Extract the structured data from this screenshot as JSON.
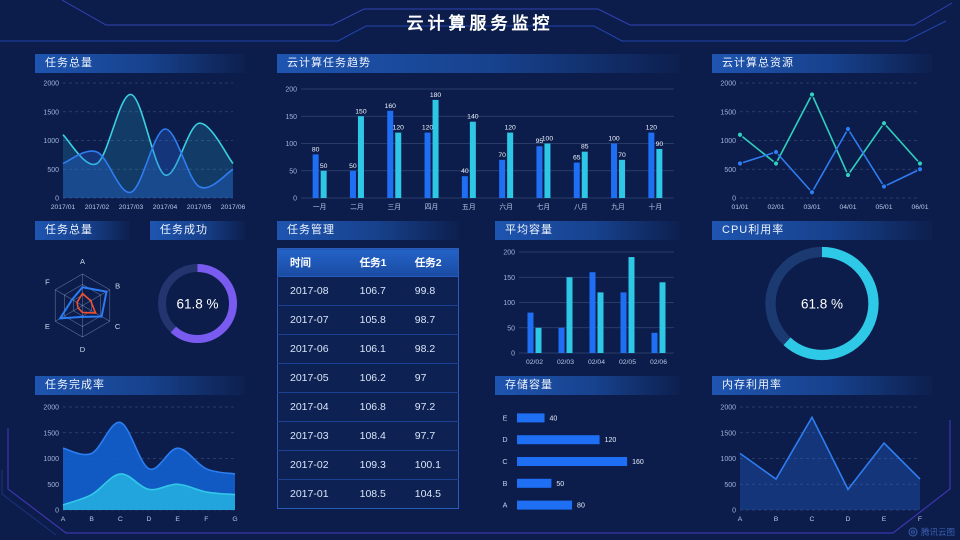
{
  "header": {
    "title": "云计算服务监控"
  },
  "watermark": {
    "label": "腾讯云图"
  },
  "panels": {
    "tasks_total": {
      "title": "任务总量"
    },
    "cloud_task_trend": {
      "title": "云计算任务趋势"
    },
    "cloud_total_resource": {
      "title": "云计算总资源"
    },
    "tasks_total_radar": {
      "title": "任务总量"
    },
    "task_success": {
      "title": "任务成功"
    },
    "task_management": {
      "title": "任务管理"
    },
    "avg_capacity": {
      "title": "平均容量"
    },
    "cpu_usage": {
      "title": "CPU利用率"
    },
    "task_completion": {
      "title": "任务完成率"
    },
    "storage_capacity": {
      "title": "存储容量"
    },
    "memory_usage": {
      "title": "内存利用率"
    }
  },
  "table": {
    "headers": [
      "时间",
      "任务1",
      "任务2"
    ],
    "rows": [
      [
        "2017-08",
        "106.7",
        "99.8"
      ],
      [
        "2017-07",
        "105.8",
        "98.7"
      ],
      [
        "2017-06",
        "106.1",
        "98.2"
      ],
      [
        "2017-05",
        "106.2",
        "97"
      ],
      [
        "2017-04",
        "106.8",
        "97.2"
      ],
      [
        "2017-03",
        "108.4",
        "97.7"
      ],
      [
        "2017-02",
        "109.3",
        "100.1"
      ],
      [
        "2017-01",
        "108.5",
        "104.5"
      ]
    ]
  },
  "chart_data": [
    {
      "id": "tasks_total",
      "type": "area",
      "title": "任务总量",
      "x": [
        "2017/01",
        "2017/02",
        "2017/03",
        "2017/04",
        "2017/05",
        "2017/06"
      ],
      "series": [
        {
          "name": "cyan",
          "color": "#3ad0e0",
          "fill": "rgba(49,180,215,0.20)",
          "values": [
            1100,
            600,
            1800,
            400,
            1300,
            600
          ]
        },
        {
          "name": "blue",
          "color": "#2e7df2",
          "fill": "rgba(40,110,230,0.30)",
          "values": [
            600,
            800,
            100,
            1200,
            200,
            500
          ]
        }
      ],
      "ylim": [
        0,
        2000
      ],
      "yticks": [
        0,
        500,
        1000,
        1500,
        2000
      ],
      "smooth": true,
      "markers": false,
      "grid_dashed": true
    },
    {
      "id": "cloud_task_trend",
      "type": "bar",
      "title": "云计算任务趋势",
      "categories": [
        "一月",
        "二月",
        "三月",
        "四月",
        "五月",
        "六月",
        "七月",
        "八月",
        "九月",
        "十月"
      ],
      "series": [
        {
          "name": "blue",
          "color": "#1f6ff5",
          "values": [
            80,
            50,
            160,
            120,
            40,
            70,
            95,
            65,
            100,
            120
          ]
        },
        {
          "name": "cyan",
          "color": "#2ec8e6",
          "values": [
            50,
            150,
            120,
            180,
            140,
            120,
            100,
            85,
            70,
            90
          ]
        }
      ],
      "ylim": [
        0,
        200
      ],
      "yticks": [
        0,
        50,
        100,
        150,
        200
      ],
      "value_labels": true
    },
    {
      "id": "cloud_total_resource",
      "type": "line",
      "title": "云计算总资源",
      "x": [
        "01/01",
        "02/01",
        "03/01",
        "04/01",
        "05/01",
        "06/01"
      ],
      "series": [
        {
          "name": "teal",
          "color": "#2fd0bc",
          "values": [
            1100,
            600,
            1800,
            400,
            1300,
            600
          ]
        },
        {
          "name": "blue",
          "color": "#2e7df2",
          "values": [
            600,
            800,
            100,
            1200,
            200,
            500
          ]
        }
      ],
      "ylim": [
        0,
        2000
      ],
      "yticks": [
        0,
        500,
        1000,
        1500,
        2000
      ],
      "smooth": false,
      "markers": true,
      "grid_dashed": true
    },
    {
      "id": "tasks_total_radar",
      "type": "radar",
      "title": "任务总量",
      "axes": [
        "A",
        "B",
        "C",
        "D",
        "E",
        "F"
      ],
      "max": 100,
      "series": [
        {
          "name": "blue",
          "color": "#2b7bf3",
          "values": [
            58,
            88,
            70,
            36,
            82,
            38
          ]
        },
        {
          "name": "orange",
          "color": "#f0502f",
          "values": [
            38,
            30,
            48,
            22,
            16,
            20
          ]
        }
      ]
    },
    {
      "id": "task_success",
      "type": "donut",
      "title": "任务成功",
      "value": 61.8,
      "label": "61.8 %",
      "color": "#7a5bf0",
      "track": "#23346e"
    },
    {
      "id": "avg_capacity",
      "type": "bar",
      "title": "平均容量",
      "categories": [
        "02/02",
        "02/03",
        "02/04",
        "02/05",
        "02/06"
      ],
      "series": [
        {
          "name": "blue",
          "color": "#1f6ff5",
          "values": [
            80,
            50,
            160,
            120,
            40
          ]
        },
        {
          "name": "cyan",
          "color": "#2ec8e6",
          "values": [
            50,
            150,
            120,
            190,
            140
          ]
        }
      ],
      "ylim": [
        0,
        200
      ],
      "yticks": [
        0,
        50,
        100,
        150,
        200
      ],
      "value_labels": false
    },
    {
      "id": "storage_capacity",
      "type": "hbar",
      "title": "存储容量",
      "categories": [
        "E",
        "D",
        "C",
        "B",
        "A"
      ],
      "values": [
        40,
        120,
        160,
        50,
        80
      ],
      "color": "#1f6ff5",
      "xmax": 170,
      "value_labels": true
    },
    {
      "id": "cpu_usage",
      "type": "donut",
      "title": "CPU利用率",
      "value": 61.8,
      "label": "61.8 %",
      "color": "#2fc9e8",
      "track": "#1c3a72"
    },
    {
      "id": "task_completion",
      "type": "area",
      "title": "任务完成率",
      "x": [
        "A",
        "B",
        "C",
        "D",
        "E",
        "F",
        "G"
      ],
      "series": [
        {
          "name": "blue",
          "color": "#2b7df0",
          "fill": "rgba(20,95,205,0.92)",
          "values": [
            1200,
            1100,
            1700,
            800,
            1200,
            800,
            700
          ]
        },
        {
          "name": "cyan",
          "color": "#32c8e8",
          "fill": "rgba(36,170,222,0.95)",
          "values": [
            100,
            300,
            700,
            400,
            500,
            350,
            300
          ]
        }
      ],
      "ylim": [
        0,
        2000
      ],
      "yticks": [
        0,
        500,
        1000,
        1500,
        2000
      ],
      "smooth": true,
      "markers": false,
      "grid_dashed": true
    },
    {
      "id": "memory_usage",
      "type": "line",
      "title": "内存利用率",
      "x": [
        "A",
        "B",
        "C",
        "D",
        "E",
        "F"
      ],
      "series": [
        {
          "name": "blue",
          "color": "#2e7df2",
          "fill": "rgba(40,110,230,0.30)",
          "values": [
            1100,
            600,
            1800,
            400,
            1300,
            600
          ]
        }
      ],
      "ylim": [
        0,
        2000
      ],
      "yticks": [
        0,
        500,
        1000,
        1500,
        2000
      ],
      "smooth": false,
      "markers": false,
      "grid_dashed": true
    }
  ]
}
